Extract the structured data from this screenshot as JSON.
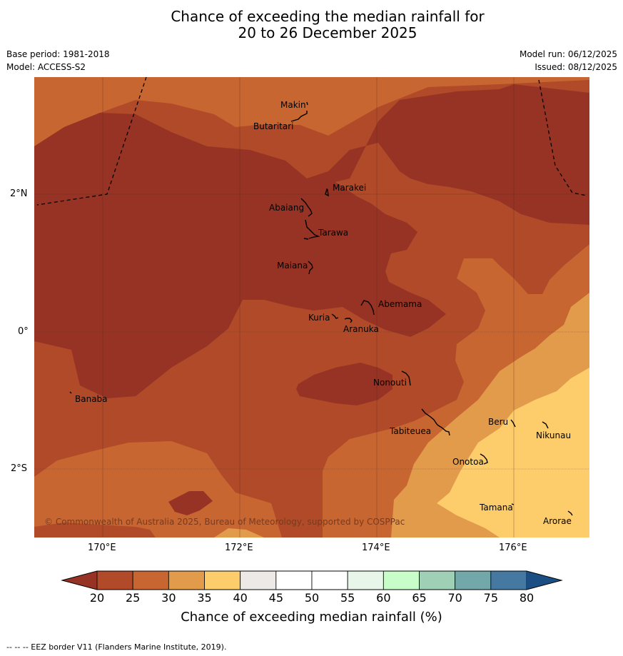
{
  "title": {
    "line1": "Chance of exceeding the median rainfall for",
    "line2": "20 to 26 December 2025"
  },
  "meta": {
    "base_period": "Base period: 1981-2018",
    "model": "Model: ACCESS-S2",
    "model_run": "Model run: 06/12/2025",
    "issued": "Issued: 08/12/2025"
  },
  "axes": {
    "lat_ticks": [
      "2°N",
      "0°",
      "2°S"
    ],
    "lon_ticks": [
      "170°E",
      "172°E",
      "174°E",
      "176°E"
    ]
  },
  "places": [
    "Makin",
    "Butaritari",
    "Marakei",
    "Abaiang",
    "Tarawa",
    "Maiana",
    "Abemama",
    "Kuria",
    "Aranuka",
    "Banaba",
    "Nonouti",
    "Tabiteuea",
    "Beru",
    "Nikunau",
    "Onotoa",
    "Tamana",
    "Arorae"
  ],
  "copyright": "© Commonwealth of Australia 2025, Bureau of Meteorology, supported by COSPPac",
  "colorbar": {
    "title": "Chance of exceeding median rainfall (%)",
    "ticks": [
      "20",
      "25",
      "30",
      "35",
      "40",
      "45",
      "50",
      "55",
      "60",
      "65",
      "70",
      "75",
      "80"
    ],
    "colors": {
      "below_20": "#963324",
      "20-25": "#b04a28",
      "25-30": "#c86632",
      "30-35": "#e29a4b",
      "35-40": "#fdcd6b",
      "40-45": "#ece9e6",
      "45-50": "#ffffff",
      "50-55": "#ffffff",
      "55-60": "#e8f5e9",
      "60-65": "#c8fcc8",
      "65-70": "#9fd0b6",
      "70-75": "#72a8a9",
      "75-80": "#4579a2",
      "above_80": "#1b4f84"
    }
  },
  "footer": "--  --  -- EEZ border V11 (Flanders Marine Institute, 2019)."
}
